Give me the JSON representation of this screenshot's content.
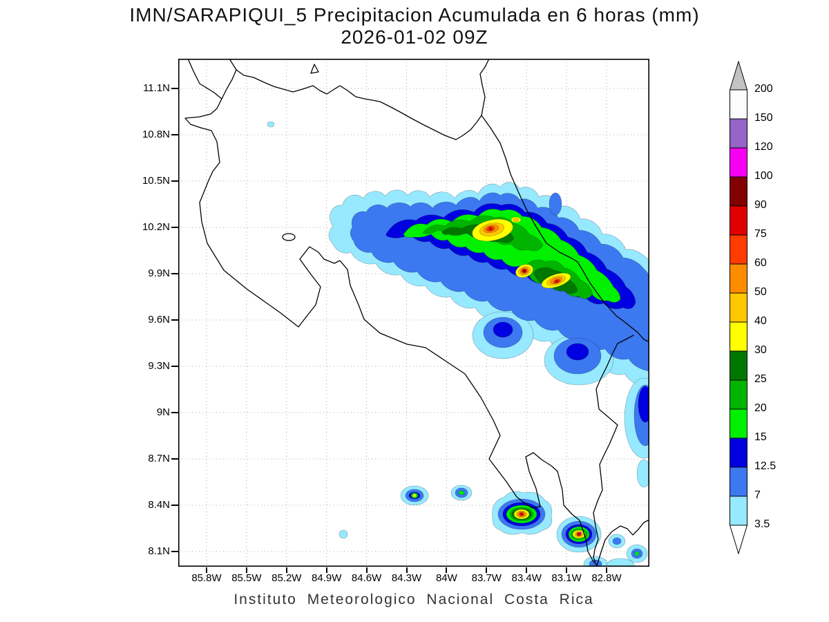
{
  "title": {
    "line1": "IMN/SARAPIQUI_5 Precipitacion Acumulada en 6 horas (mm)",
    "line2": "2026-01-02 09Z"
  },
  "footer": {
    "caption": "Instituto Meteorologico Nacional Costa Rica"
  },
  "axes": {
    "y": {
      "ticks": [
        "11.1N",
        "10.8N",
        "10.5N",
        "10.2N",
        "9.9N",
        "9.6N",
        "9.3N",
        "9N",
        "8.7N",
        "8.4N",
        "8.1N"
      ]
    },
    "x": {
      "ticks": [
        "85.8W",
        "85.5W",
        "85.2W",
        "84.9W",
        "84.6W",
        "84.3W",
        "84W",
        "83.7W",
        "83.4W",
        "83.1W",
        "82.8W"
      ]
    }
  },
  "colorbar": {
    "units": "mm",
    "boundary_labels": [
      "200",
      "150",
      "120",
      "100",
      "90",
      "75",
      "60",
      "50",
      "40",
      "30",
      "25",
      "20",
      "15",
      "12.5",
      "7",
      "3.5"
    ],
    "segment_order": [
      "gt200",
      "p150",
      "p120",
      "p100",
      "p90",
      "p75",
      "p60",
      "p50",
      "p40",
      "p30",
      "p25",
      "p20",
      "p15",
      "p12_5",
      "p7",
      "p3_5",
      "lt3_5"
    ]
  },
  "colors": {
    "gt200": "#c2c2c2",
    "p150": "#fcfcfc",
    "p120": "#9664c8",
    "p100": "#f500f5",
    "p90": "#820000",
    "p75": "#e10000",
    "p60": "#ff3c00",
    "p50": "#ff8c00",
    "p40": "#ffc800",
    "p30": "#ffff00",
    "p25": "#007800",
    "p20": "#00b400",
    "p15": "#00f000",
    "p12_5": "#0000e0",
    "p7": "#3c78f0",
    "p3_5": "#96e9ff",
    "lt3_5": "#ffffff"
  }
}
